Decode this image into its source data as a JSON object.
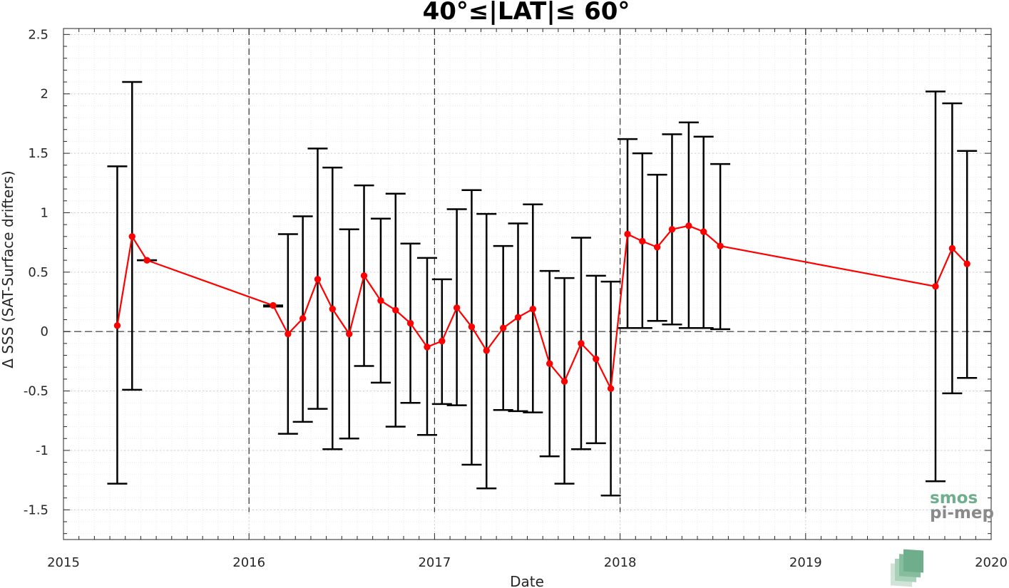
{
  "chart_data": {
    "type": "scatter",
    "title": "40°≤|LAT|≤ 60°",
    "xlabel": "Date",
    "ylabel": "Δ SSS (SAT-Surface drifters)",
    "xlim": [
      2015,
      2020
    ],
    "ylim": [
      -1.75,
      2.55
    ],
    "x_ticks": [
      2015,
      2016,
      2017,
      2018,
      2019,
      2020
    ],
    "y_ticks": [
      -1.5,
      -1,
      -0.5,
      0,
      0.5,
      1,
      1.5,
      2,
      2.5
    ],
    "y_tick_labels": [
      "-1.5",
      "-1",
      "-0.5",
      "0",
      "0.5",
      "1",
      "1.5",
      "2",
      "2.5"
    ],
    "grid": true,
    "minor_grid": true,
    "year_dividers": [
      2016,
      2017,
      2018,
      2019
    ],
    "reference_line": 0,
    "series": [
      {
        "color": "#ff0000",
        "errorbar_color": "#000000",
        "points": [
          {
            "x": 2015.29,
            "y": 0.05,
            "lo": -1.28,
            "hi": 1.39
          },
          {
            "x": 2015.37,
            "y": 0.8,
            "lo": -0.49,
            "hi": 2.1
          },
          {
            "x": 2015.45,
            "y": 0.6,
            "lo": 0.6,
            "hi": 0.6
          },
          {
            "x": 2016.13,
            "y": 0.22,
            "lo": 0.21,
            "hi": 0.22
          },
          {
            "x": 2016.21,
            "y": -0.02,
            "lo": -0.86,
            "hi": 0.82
          },
          {
            "x": 2016.29,
            "y": 0.11,
            "lo": -0.76,
            "hi": 0.97
          },
          {
            "x": 2016.37,
            "y": 0.44,
            "lo": -0.65,
            "hi": 1.54
          },
          {
            "x": 2016.45,
            "y": 0.19,
            "lo": -0.99,
            "hi": 1.38
          },
          {
            "x": 2016.54,
            "y": -0.02,
            "lo": -0.9,
            "hi": 0.86
          },
          {
            "x": 2016.62,
            "y": 0.47,
            "lo": -0.29,
            "hi": 1.23
          },
          {
            "x": 2016.71,
            "y": 0.26,
            "lo": -0.43,
            "hi": 0.95
          },
          {
            "x": 2016.79,
            "y": 0.18,
            "lo": -0.8,
            "hi": 1.16
          },
          {
            "x": 2016.87,
            "y": 0.07,
            "lo": -0.6,
            "hi": 0.74
          },
          {
            "x": 2016.96,
            "y": -0.13,
            "lo": -0.87,
            "hi": 0.62
          },
          {
            "x": 2017.04,
            "y": -0.08,
            "lo": -0.61,
            "hi": 0.44
          },
          {
            "x": 2017.12,
            "y": 0.2,
            "lo": -0.62,
            "hi": 1.03
          },
          {
            "x": 2017.2,
            "y": 0.04,
            "lo": -1.12,
            "hi": 1.19
          },
          {
            "x": 2017.28,
            "y": -0.16,
            "lo": -1.32,
            "hi": 0.99
          },
          {
            "x": 2017.37,
            "y": 0.03,
            "lo": -0.66,
            "hi": 0.72
          },
          {
            "x": 2017.45,
            "y": 0.12,
            "lo": -0.67,
            "hi": 0.91
          },
          {
            "x": 2017.53,
            "y": 0.19,
            "lo": -0.68,
            "hi": 1.07
          },
          {
            "x": 2017.62,
            "y": -0.27,
            "lo": -1.05,
            "hi": 0.51
          },
          {
            "x": 2017.7,
            "y": -0.42,
            "lo": -1.28,
            "hi": 0.45
          },
          {
            "x": 2017.79,
            "y": -0.1,
            "lo": -0.99,
            "hi": 0.79
          },
          {
            "x": 2017.87,
            "y": -0.23,
            "lo": -0.94,
            "hi": 0.47
          },
          {
            "x": 2017.95,
            "y": -0.48,
            "lo": -1.38,
            "hi": 0.42
          },
          {
            "x": 2018.04,
            "y": 0.82,
            "lo": 0.03,
            "hi": 1.62
          },
          {
            "x": 2018.12,
            "y": 0.76,
            "lo": 0.03,
            "hi": 1.5
          },
          {
            "x": 2018.2,
            "y": 0.71,
            "lo": 0.09,
            "hi": 1.32
          },
          {
            "x": 2018.28,
            "y": 0.86,
            "lo": 0.06,
            "hi": 1.66
          },
          {
            "x": 2018.37,
            "y": 0.89,
            "lo": 0.03,
            "hi": 1.76
          },
          {
            "x": 2018.45,
            "y": 0.84,
            "lo": 0.03,
            "hi": 1.64
          },
          {
            "x": 2018.54,
            "y": 0.72,
            "lo": 0.02,
            "hi": 1.41
          },
          {
            "x": 2019.7,
            "y": 0.38,
            "lo": -1.26,
            "hi": 2.02
          },
          {
            "x": 2019.79,
            "y": 0.7,
            "lo": -0.52,
            "hi": 1.92
          },
          {
            "x": 2019.87,
            "y": 0.57,
            "lo": -0.39,
            "hi": 1.52
          }
        ]
      }
    ]
  },
  "logo": {
    "line1": "smos",
    "line2": "pi-mep",
    "color": "#6fae8c"
  }
}
